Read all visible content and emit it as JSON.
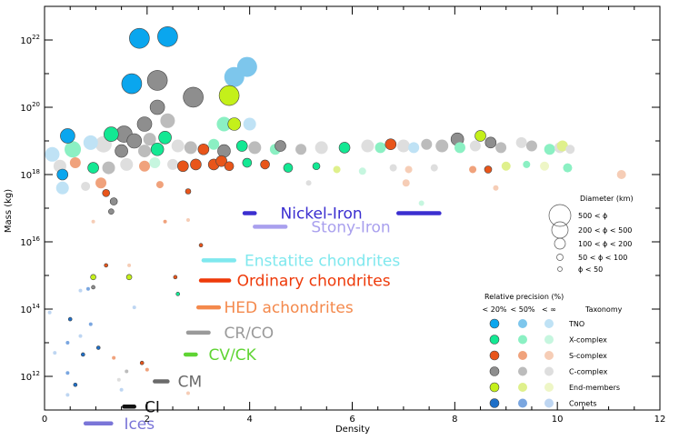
{
  "chart_data": {
    "type": "scatter",
    "title": "",
    "xlabel": "Density",
    "ylabel": "Mass (kg)",
    "xlim": [
      0,
      12
    ],
    "ylim_log10": [
      11,
      23
    ],
    "x_ticks": [
      {
        "v": 0,
        "label": "0"
      },
      {
        "v": 2,
        "label": "2"
      },
      {
        "v": 4,
        "label": "4"
      },
      {
        "v": 6,
        "label": "6"
      },
      {
        "v": 8,
        "label": "8"
      },
      {
        "v": 10,
        "label": "10"
      },
      {
        "v": 12,
        "label": "12"
      }
    ],
    "y_ticks": [
      {
        "e": 12,
        "base": "10",
        "exp": "12"
      },
      {
        "e": 14,
        "base": "10",
        "exp": "14"
      },
      {
        "e": 16,
        "base": "10",
        "exp": "16"
      },
      {
        "e": 18,
        "base": "10",
        "exp": "18"
      },
      {
        "e": 20,
        "base": "10",
        "exp": "20"
      },
      {
        "e": 22,
        "base": "10",
        "exp": "22"
      }
    ],
    "meteorite_classes": [
      {
        "name": "Nickel-Iron",
        "d_min": 3.9,
        "d_max": 7.7,
        "highlight": [
          [
            3.9,
            4.1
          ],
          [
            6.9,
            7.7
          ]
        ],
        "log_mass": 16.85,
        "color": "#3b2fd0",
        "label_x": 4.6
      },
      {
        "name": "Stony-Iron",
        "d_min": 4.1,
        "d_max": 4.7,
        "log_mass": 16.45,
        "color": "#a9a0ee",
        "label_x": 5.2
      },
      {
        "name": "Enstatite chondrites",
        "d_min": 3.1,
        "d_max": 3.7,
        "log_mass": 15.45,
        "color": "#7fe8ee",
        "label_x": 3.9
      },
      {
        "name": "Ordinary chondrites",
        "d_min": 3.05,
        "d_max": 3.6,
        "log_mass": 14.85,
        "color": "#ee3a0a",
        "label_x": 3.75
      },
      {
        "name": "HED achondrites",
        "d_min": 3.0,
        "d_max": 3.4,
        "log_mass": 14.05,
        "color": "#f4894c",
        "label_x": 3.5
      },
      {
        "name": "CR/CO",
        "d_min": 2.8,
        "d_max": 3.2,
        "log_mass": 13.3,
        "color": "#9a9a9a",
        "label_x": 3.5
      },
      {
        "name": "CV/CK",
        "d_min": 2.75,
        "d_max": 2.95,
        "log_mass": 12.65,
        "color": "#5fd433",
        "label_x": 3.2
      },
      {
        "name": "CM",
        "d_min": 2.15,
        "d_max": 2.4,
        "log_mass": 11.85,
        "color": "#6a6a6a",
        "label_x": 2.6
      },
      {
        "name": "CI",
        "d_min": 1.55,
        "d_max": 1.75,
        "log_mass": 11.1,
        "color": "#111111",
        "label_x": 1.95
      },
      {
        "name": "Ices",
        "d_min": 0.8,
        "d_max": 1.3,
        "log_mass": 10.6,
        "color": "#7a75d8",
        "label_x": 1.55
      }
    ],
    "taxonomy_colors": {
      "TNO": [
        "#0aa6ee",
        "#7dc6ec",
        "#bfe2f5"
      ],
      "X-complex": [
        "#13e893",
        "#8bf0c3",
        "#c6f6df"
      ],
      "S-complex": [
        "#e8551a",
        "#f0a27c",
        "#f6cdb6"
      ],
      "C-complex": [
        "#8e8e8e",
        "#bcbcbc",
        "#dedede"
      ],
      "End-members": [
        "#c4f01a",
        "#dff08c",
        "#eef6c6"
      ],
      "Comets": [
        "#1e6fc8",
        "#7aa6e0",
        "#bed6f2"
      ]
    },
    "points": [
      {
        "d": 1.85,
        "m": 22.05,
        "r": 11,
        "t": "TNO",
        "p": 0
      },
      {
        "d": 2.4,
        "m": 22.1,
        "r": 11,
        "t": "TNO",
        "p": 0
      },
      {
        "d": 3.95,
        "m": 21.2,
        "r": 11,
        "t": "TNO",
        "p": 1
      },
      {
        "d": 3.7,
        "m": 20.9,
        "r": 11,
        "t": "TNO",
        "p": 1
      },
      {
        "d": 1.7,
        "m": 20.7,
        "r": 11,
        "t": "TNO",
        "p": 0
      },
      {
        "d": 2.2,
        "m": 20.8,
        "r": 11,
        "t": "C-complex",
        "p": 0
      },
      {
        "d": 2.9,
        "m": 20.3,
        "r": 11,
        "t": "C-complex",
        "p": 0
      },
      {
        "d": 3.6,
        "m": 20.35,
        "r": 11,
        "t": "End-members",
        "p": 0
      },
      {
        "d": 2.2,
        "m": 20.0,
        "r": 8,
        "t": "C-complex",
        "p": 0
      },
      {
        "d": 1.95,
        "m": 19.5,
        "r": 8,
        "t": "C-complex",
        "p": 0
      },
      {
        "d": 2.4,
        "m": 19.6,
        "r": 8,
        "t": "C-complex",
        "p": 1
      },
      {
        "d": 3.7,
        "m": 19.5,
        "r": 7,
        "t": "End-members",
        "p": 0
      },
      {
        "d": 3.5,
        "m": 19.5,
        "r": 8,
        "t": "X-complex",
        "p": 1
      },
      {
        "d": 4.0,
        "m": 19.5,
        "r": 7,
        "t": "TNO",
        "p": 2
      },
      {
        "d": 0.45,
        "m": 19.15,
        "r": 8,
        "t": "TNO",
        "p": 0
      },
      {
        "d": 1.3,
        "m": 19.2,
        "r": 8,
        "t": "X-complex",
        "p": 0
      },
      {
        "d": 1.55,
        "m": 19.2,
        "r": 9,
        "t": "C-complex",
        "p": 0
      },
      {
        "d": 1.75,
        "m": 19.0,
        "r": 8,
        "t": "C-complex",
        "p": 0
      },
      {
        "d": 2.05,
        "m": 19.05,
        "r": 7,
        "t": "C-complex",
        "p": 1
      },
      {
        "d": 2.35,
        "m": 19.1,
        "r": 7,
        "t": "X-complex",
        "p": 0
      },
      {
        "d": 1.15,
        "m": 18.9,
        "r": 9,
        "t": "C-complex",
        "p": 2
      },
      {
        "d": 0.9,
        "m": 18.95,
        "r": 8,
        "t": "TNO",
        "p": 2
      },
      {
        "d": 0.55,
        "m": 18.75,
        "r": 9,
        "t": "X-complex",
        "p": 1
      },
      {
        "d": 0.15,
        "m": 18.6,
        "r": 8,
        "t": "TNO",
        "p": 2
      },
      {
        "d": 1.5,
        "m": 18.7,
        "r": 7,
        "t": "C-complex",
        "p": 0
      },
      {
        "d": 1.95,
        "m": 18.7,
        "r": 7,
        "t": "C-complex",
        "p": 1
      },
      {
        "d": 2.2,
        "m": 18.75,
        "r": 7,
        "t": "X-complex",
        "p": 0
      },
      {
        "d": 2.6,
        "m": 18.85,
        "r": 7,
        "t": "C-complex",
        "p": 2
      },
      {
        "d": 2.85,
        "m": 18.8,
        "r": 7,
        "t": "C-complex",
        "p": 1
      },
      {
        "d": 3.1,
        "m": 18.75,
        "r": 6,
        "t": "S-complex",
        "p": 0
      },
      {
        "d": 3.3,
        "m": 18.9,
        "r": 6,
        "t": "X-complex",
        "p": 1
      },
      {
        "d": 3.5,
        "m": 18.7,
        "r": 7,
        "t": "C-complex",
        "p": 0
      },
      {
        "d": 3.85,
        "m": 18.85,
        "r": 6,
        "t": "X-complex",
        "p": 0
      },
      {
        "d": 4.1,
        "m": 18.8,
        "r": 7,
        "t": "C-complex",
        "p": 1
      },
      {
        "d": 4.5,
        "m": 18.75,
        "r": 6,
        "t": "X-complex",
        "p": 1
      },
      {
        "d": 4.6,
        "m": 18.85,
        "r": 6,
        "t": "C-complex",
        "p": 0
      },
      {
        "d": 5.0,
        "m": 18.75,
        "r": 6,
        "t": "C-complex",
        "p": 1
      },
      {
        "d": 5.4,
        "m": 18.8,
        "r": 7,
        "t": "C-complex",
        "p": 2
      },
      {
        "d": 5.85,
        "m": 18.8,
        "r": 6,
        "t": "X-complex",
        "p": 0
      },
      {
        "d": 6.3,
        "m": 18.85,
        "r": 7,
        "t": "C-complex",
        "p": 2
      },
      {
        "d": 6.55,
        "m": 18.8,
        "r": 6,
        "t": "X-complex",
        "p": 1
      },
      {
        "d": 6.75,
        "m": 18.9,
        "r": 6,
        "t": "S-complex",
        "p": 0
      },
      {
        "d": 7.0,
        "m": 18.85,
        "r": 7,
        "t": "C-complex",
        "p": 2
      },
      {
        "d": 7.2,
        "m": 18.8,
        "r": 6,
        "t": "TNO",
        "p": 2
      },
      {
        "d": 7.45,
        "m": 18.9,
        "r": 6,
        "t": "C-complex",
        "p": 1
      },
      {
        "d": 7.75,
        "m": 18.85,
        "r": 7,
        "t": "C-complex",
        "p": 1
      },
      {
        "d": 8.05,
        "m": 19.05,
        "r": 7,
        "t": "C-complex",
        "p": 0
      },
      {
        "d": 8.1,
        "m": 18.8,
        "r": 6,
        "t": "X-complex",
        "p": 1
      },
      {
        "d": 8.4,
        "m": 18.85,
        "r": 6,
        "t": "C-complex",
        "p": 2
      },
      {
        "d": 8.5,
        "m": 19.15,
        "r": 6,
        "t": "End-members",
        "p": 0
      },
      {
        "d": 8.7,
        "m": 18.95,
        "r": 6,
        "t": "C-complex",
        "p": 0
      },
      {
        "d": 8.9,
        "m": 18.8,
        "r": 6,
        "t": "C-complex",
        "p": 1
      },
      {
        "d": 9.3,
        "m": 18.95,
        "r": 6,
        "t": "C-complex",
        "p": 2
      },
      {
        "d": 9.5,
        "m": 18.85,
        "r": 6,
        "t": "C-complex",
        "p": 1
      },
      {
        "d": 9.85,
        "m": 18.75,
        "r": 6,
        "t": "X-complex",
        "p": 1
      },
      {
        "d": 10.05,
        "m": 18.8,
        "r": 6,
        "t": "C-complex",
        "p": 2
      },
      {
        "d": 10.1,
        "m": 18.85,
        "r": 6,
        "t": "End-members",
        "p": 1
      },
      {
        "d": 10.25,
        "m": 18.75,
        "r": 5,
        "t": "C-complex",
        "p": 2
      },
      {
        "d": 0.3,
        "m": 18.25,
        "r": 7,
        "t": "C-complex",
        "p": 2
      },
      {
        "d": 0.6,
        "m": 18.35,
        "r": 6,
        "t": "S-complex",
        "p": 1
      },
      {
        "d": 0.95,
        "m": 18.2,
        "r": 6,
        "t": "X-complex",
        "p": 0
      },
      {
        "d": 1.25,
        "m": 18.2,
        "r": 7,
        "t": "C-complex",
        "p": 1
      },
      {
        "d": 1.6,
        "m": 18.3,
        "r": 7,
        "t": "C-complex",
        "p": 2
      },
      {
        "d": 1.95,
        "m": 18.25,
        "r": 6,
        "t": "S-complex",
        "p": 1
      },
      {
        "d": 2.15,
        "m": 18.35,
        "r": 6,
        "t": "X-complex",
        "p": 2
      },
      {
        "d": 2.5,
        "m": 18.3,
        "r": 6,
        "t": "C-complex",
        "p": 2
      },
      {
        "d": 2.7,
        "m": 18.25,
        "r": 6,
        "t": "S-complex",
        "p": 0
      },
      {
        "d": 2.95,
        "m": 18.3,
        "r": 6,
        "t": "S-complex",
        "p": 0
      },
      {
        "d": 3.3,
        "m": 18.3,
        "r": 6,
        "t": "S-complex",
        "p": 0
      },
      {
        "d": 3.45,
        "m": 18.4,
        "r": 6,
        "t": "S-complex",
        "p": 0
      },
      {
        "d": 3.6,
        "m": 18.25,
        "r": 5,
        "t": "S-complex",
        "p": 0
      },
      {
        "d": 3.95,
        "m": 18.35,
        "r": 5,
        "t": "X-complex",
        "p": 0
      },
      {
        "d": 4.3,
        "m": 18.3,
        "r": 5,
        "t": "S-complex",
        "p": 0
      },
      {
        "d": 4.75,
        "m": 18.2,
        "r": 5,
        "t": "X-complex",
        "p": 0
      },
      {
        "d": 5.3,
        "m": 18.25,
        "r": 4,
        "t": "X-complex",
        "p": 0
      },
      {
        "d": 5.7,
        "m": 18.15,
        "r": 4,
        "t": "End-members",
        "p": 1
      },
      {
        "d": 6.2,
        "m": 18.1,
        "r": 4,
        "t": "X-complex",
        "p": 2
      },
      {
        "d": 6.8,
        "m": 18.2,
        "r": 4,
        "t": "C-complex",
        "p": 2
      },
      {
        "d": 7.1,
        "m": 18.15,
        "r": 4,
        "t": "S-complex",
        "p": 2
      },
      {
        "d": 7.6,
        "m": 18.2,
        "r": 4,
        "t": "C-complex",
        "p": 2
      },
      {
        "d": 8.35,
        "m": 18.15,
        "r": 4,
        "t": "S-complex",
        "p": 1
      },
      {
        "d": 8.65,
        "m": 18.15,
        "r": 4,
        "t": "S-complex",
        "p": 0
      },
      {
        "d": 9.0,
        "m": 18.25,
        "r": 5,
        "t": "End-members",
        "p": 1
      },
      {
        "d": 9.4,
        "m": 18.3,
        "r": 4,
        "t": "X-complex",
        "p": 1
      },
      {
        "d": 9.75,
        "m": 18.25,
        "r": 5,
        "t": "End-members",
        "p": 2
      },
      {
        "d": 10.2,
        "m": 18.2,
        "r": 5,
        "t": "X-complex",
        "p": 1
      },
      {
        "d": 11.25,
        "m": 18.0,
        "r": 5,
        "t": "S-complex",
        "p": 2
      },
      {
        "d": 0.35,
        "m": 18.0,
        "r": 6,
        "t": "TNO",
        "p": 0
      },
      {
        "d": 0.35,
        "m": 17.6,
        "r": 7,
        "t": "TNO",
        "p": 2
      },
      {
        "d": 0.8,
        "m": 17.65,
        "r": 5,
        "t": "C-complex",
        "p": 2
      },
      {
        "d": 1.1,
        "m": 17.75,
        "r": 6,
        "t": "S-complex",
        "p": 1
      },
      {
        "d": 1.2,
        "m": 17.45,
        "r": 4,
        "t": "S-complex",
        "p": 0
      },
      {
        "d": 1.35,
        "m": 17.2,
        "r": 4,
        "t": "C-complex",
        "p": 0
      },
      {
        "d": 1.3,
        "m": 16.9,
        "r": 3,
        "t": "C-complex",
        "p": 0
      },
      {
        "d": 2.25,
        "m": 17.7,
        "r": 4,
        "t": "S-complex",
        "p": 1
      },
      {
        "d": 2.8,
        "m": 17.5,
        "r": 3,
        "t": "S-complex",
        "p": 0
      },
      {
        "d": 5.15,
        "m": 17.75,
        "r": 3,
        "t": "C-complex",
        "p": 2
      },
      {
        "d": 7.05,
        "m": 17.75,
        "r": 4,
        "t": "S-complex",
        "p": 2
      },
      {
        "d": 7.35,
        "m": 17.15,
        "r": 3,
        "t": "X-complex",
        "p": 2
      },
      {
        "d": 8.8,
        "m": 17.6,
        "r": 3,
        "t": "S-complex",
        "p": 2
      },
      {
        "d": 0.95,
        "m": 16.6,
        "r": 2,
        "t": "S-complex",
        "p": 2
      },
      {
        "d": 2.35,
        "m": 16.6,
        "r": 2,
        "t": "S-complex",
        "p": 1
      },
      {
        "d": 2.8,
        "m": 16.65,
        "r": 2,
        "t": "S-complex",
        "p": 2
      },
      {
        "d": 3.05,
        "m": 15.9,
        "r": 2,
        "t": "S-complex",
        "p": 0
      },
      {
        "d": 1.2,
        "m": 15.3,
        "r": 2,
        "t": "S-complex",
        "p": 0
      },
      {
        "d": 1.65,
        "m": 15.3,
        "r": 2,
        "t": "S-complex",
        "p": 2
      },
      {
        "d": 0.95,
        "m": 14.95,
        "r": 3,
        "t": "End-members",
        "p": 0
      },
      {
        "d": 1.65,
        "m": 14.95,
        "r": 3,
        "t": "End-members",
        "p": 0
      },
      {
        "d": 2.55,
        "m": 14.95,
        "r": 2,
        "t": "S-complex",
        "p": 0
      },
      {
        "d": 2.6,
        "m": 14.45,
        "r": 2,
        "t": "X-complex",
        "p": 0
      },
      {
        "d": 0.7,
        "m": 14.55,
        "r": 2,
        "t": "Comets",
        "p": 2
      },
      {
        "d": 0.85,
        "m": 14.6,
        "r": 2,
        "t": "Comets",
        "p": 1
      },
      {
        "d": 0.95,
        "m": 14.65,
        "r": 2,
        "t": "C-complex",
        "p": 0
      },
      {
        "d": 1.75,
        "m": 14.05,
        "r": 2,
        "t": "Comets",
        "p": 2
      },
      {
        "d": 0.1,
        "m": 13.9,
        "r": 2,
        "t": "Comets",
        "p": 2
      },
      {
        "d": 0.5,
        "m": 13.7,
        "r": 2,
        "t": "Comets",
        "p": 0
      },
      {
        "d": 0.9,
        "m": 13.55,
        "r": 2,
        "t": "Comets",
        "p": 1
      },
      {
        "d": 0.7,
        "m": 13.2,
        "r": 2,
        "t": "Comets",
        "p": 2
      },
      {
        "d": 0.45,
        "m": 13.0,
        "r": 2,
        "t": "Comets",
        "p": 1
      },
      {
        "d": 1.05,
        "m": 12.85,
        "r": 2,
        "t": "Comets",
        "p": 0
      },
      {
        "d": 0.2,
        "m": 12.7,
        "r": 2,
        "t": "Comets",
        "p": 2
      },
      {
        "d": 0.75,
        "m": 12.65,
        "r": 2,
        "t": "Comets",
        "p": 0
      },
      {
        "d": 1.35,
        "m": 12.55,
        "r": 2,
        "t": "S-complex",
        "p": 1
      },
      {
        "d": 1.9,
        "m": 12.4,
        "r": 2,
        "t": "S-complex",
        "p": 0
      },
      {
        "d": 2.0,
        "m": 12.2,
        "r": 2,
        "t": "S-complex",
        "p": 1
      },
      {
        "d": 1.6,
        "m": 12.15,
        "r": 2,
        "t": "C-complex",
        "p": 1
      },
      {
        "d": 0.45,
        "m": 12.1,
        "r": 2,
        "t": "Comets",
        "p": 1
      },
      {
        "d": 1.45,
        "m": 11.9,
        "r": 2,
        "t": "C-complex",
        "p": 2
      },
      {
        "d": 0.6,
        "m": 11.75,
        "r": 2,
        "t": "Comets",
        "p": 0
      },
      {
        "d": 0.45,
        "m": 11.45,
        "r": 2,
        "t": "Comets",
        "p": 2
      },
      {
        "d": 1.5,
        "m": 11.6,
        "r": 2,
        "t": "Comets",
        "p": 2
      },
      {
        "d": 2.8,
        "m": 11.5,
        "r": 2,
        "t": "S-complex",
        "p": 2
      }
    ],
    "diameter_legend": {
      "title": "Diameter (km)",
      "rows": [
        {
          "text": "500  <  ϕ",
          "r": 12
        },
        {
          "text": "200  <  ϕ  <  500",
          "r": 9
        },
        {
          "text": "100  <  ϕ  <  200",
          "r": 6
        },
        {
          "text": "50  <  ϕ  <  100",
          "r": 3.5
        },
        {
          "text": "ϕ  <   50",
          "r": 2.5
        }
      ]
    },
    "precision_legend": {
      "title": "Relative precision (%)",
      "levels": [
        "< 20%",
        "< 50%",
        "< ∞"
      ],
      "taxonomy_title": "Taxonomy",
      "rows": [
        "TNO",
        "X-complex",
        "S-complex",
        "C-complex",
        "End-members",
        "Comets"
      ]
    }
  }
}
